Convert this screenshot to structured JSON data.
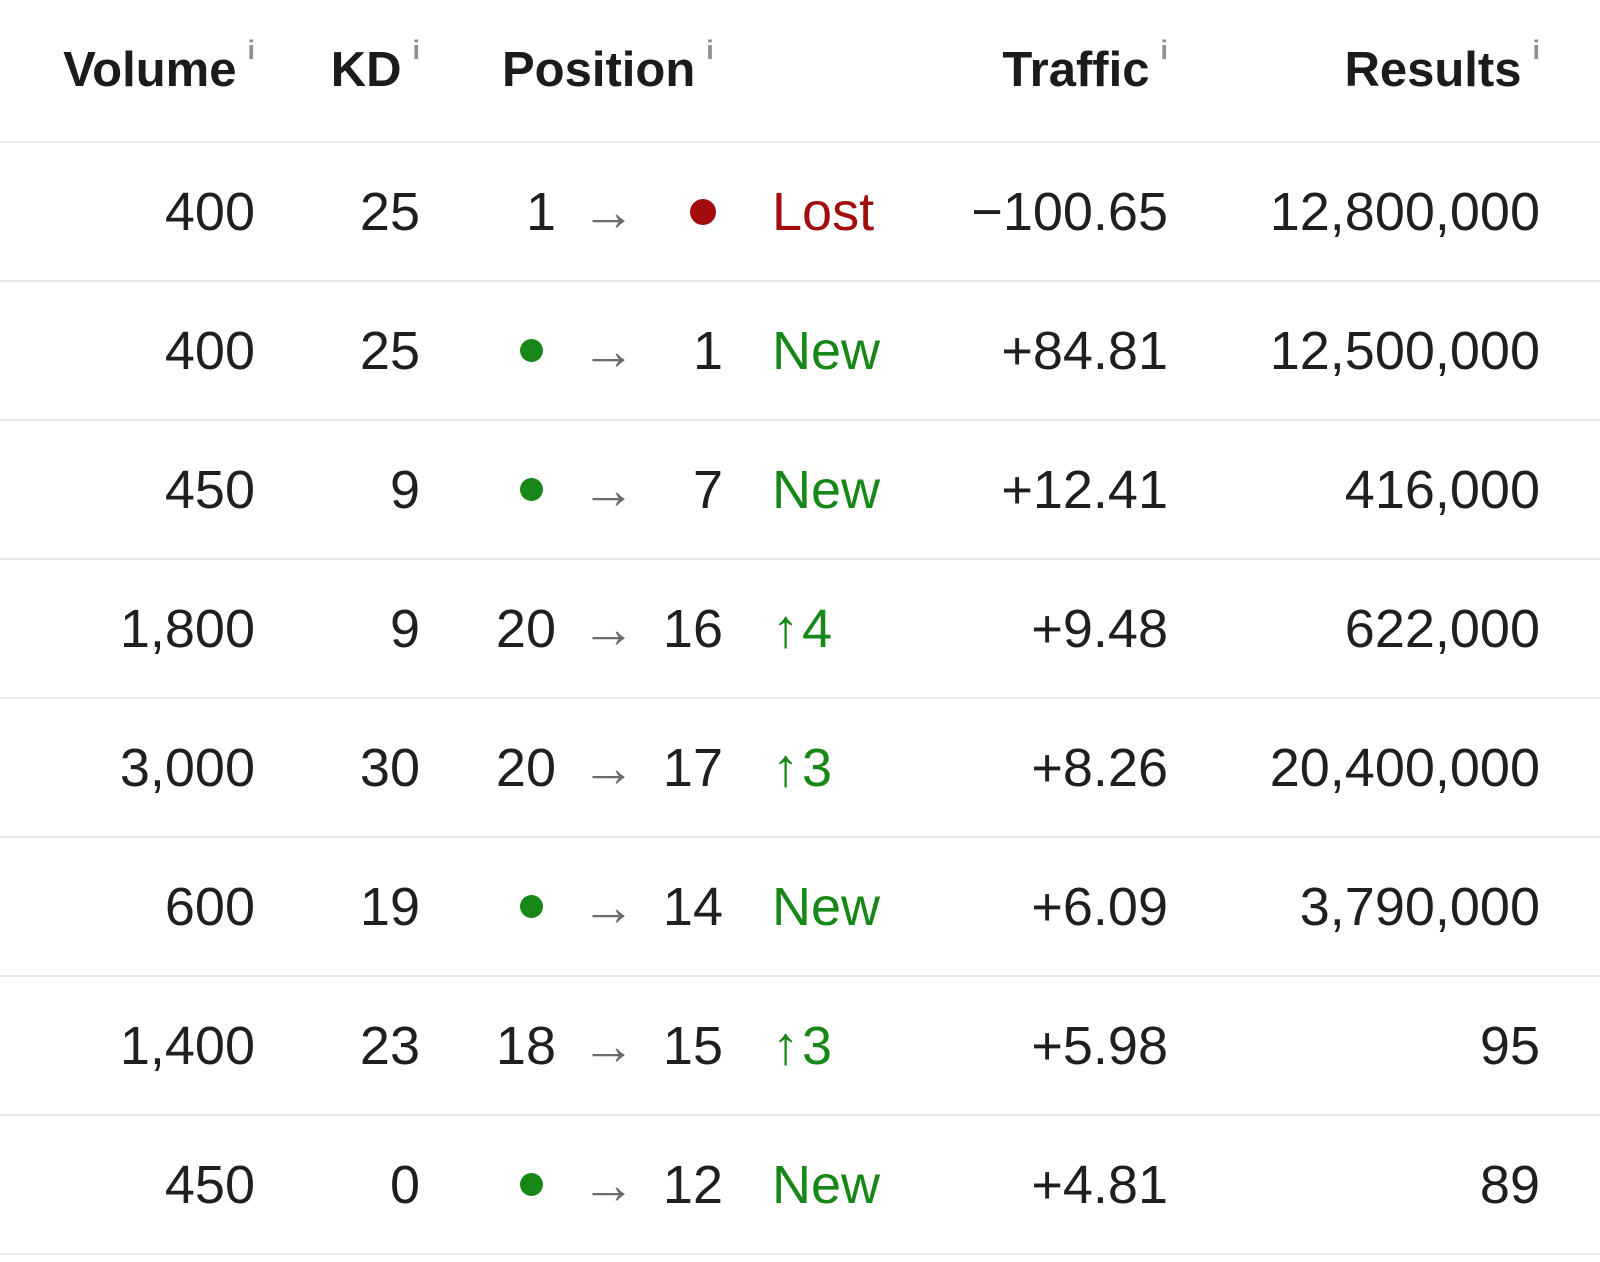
{
  "colors": {
    "green": "#178717",
    "red": "#a30c0c",
    "header_text": "#1b1b1b",
    "cell_text": "#1f1f1f",
    "info_icon": "#8f8f8f",
    "separator": "#e7e7ea",
    "arrow": "#6b6b6b"
  },
  "icons": {
    "arrow_right": "→",
    "arrow_up": "↑",
    "info": "i"
  },
  "table": {
    "columns": [
      {
        "key": "volume",
        "label": "Volume",
        "info": "i"
      },
      {
        "key": "kd",
        "label": "KD",
        "info": "i"
      },
      {
        "key": "position",
        "label": "Position",
        "info": "i"
      },
      {
        "key": "traffic",
        "label": "Traffic",
        "info": "i"
      },
      {
        "key": "results",
        "label": "Results",
        "info": "i"
      }
    ],
    "rows": [
      {
        "volume": "400",
        "kd": "25",
        "position": {
          "old": "1",
          "old_dot": false,
          "new": "",
          "new_dot": true,
          "change": "lost",
          "change_label": "Lost"
        },
        "traffic": "−100.65",
        "results": "12,800,000"
      },
      {
        "volume": "400",
        "kd": "25",
        "position": {
          "old": "",
          "old_dot": true,
          "new": "1",
          "new_dot": false,
          "change": "new",
          "change_label": "New"
        },
        "traffic": "+84.81",
        "results": "12,500,000"
      },
      {
        "volume": "450",
        "kd": "9",
        "position": {
          "old": "",
          "old_dot": true,
          "new": "7",
          "new_dot": false,
          "change": "new",
          "change_label": "New"
        },
        "traffic": "+12.41",
        "results": "416,000"
      },
      {
        "volume": "1,800",
        "kd": "9",
        "position": {
          "old": "20",
          "old_dot": false,
          "new": "16",
          "new_dot": false,
          "change": "up",
          "change_label": "4"
        },
        "traffic": "+9.48",
        "results": "622,000"
      },
      {
        "volume": "3,000",
        "kd": "30",
        "position": {
          "old": "20",
          "old_dot": false,
          "new": "17",
          "new_dot": false,
          "change": "up",
          "change_label": "3"
        },
        "traffic": "+8.26",
        "results": "20,400,000"
      },
      {
        "volume": "600",
        "kd": "19",
        "position": {
          "old": "",
          "old_dot": true,
          "new": "14",
          "new_dot": false,
          "change": "new",
          "change_label": "New"
        },
        "traffic": "+6.09",
        "results": "3,790,000"
      },
      {
        "volume": "1,400",
        "kd": "23",
        "position": {
          "old": "18",
          "old_dot": false,
          "new": "15",
          "new_dot": false,
          "change": "up",
          "change_label": "3"
        },
        "traffic": "+5.98",
        "results": "95"
      },
      {
        "volume": "450",
        "kd": "0",
        "position": {
          "old": "",
          "old_dot": true,
          "new": "12",
          "new_dot": false,
          "change": "new",
          "change_label": "New"
        },
        "traffic": "+4.81",
        "results": "89"
      }
    ]
  }
}
